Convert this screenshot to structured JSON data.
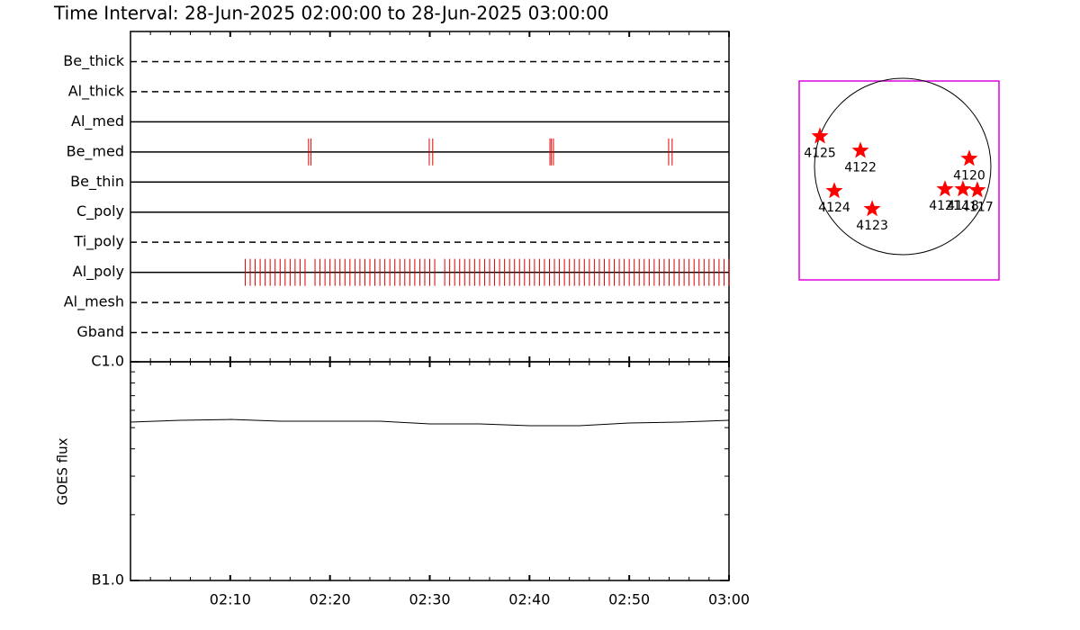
{
  "chart_data": [
    {
      "type": "timeline",
      "title": "Time Interval: 28-Jun-2025 02:00:00 to 28-Jun-2025 03:00:00",
      "categories": [
        "Be_thick",
        "Al_thick",
        "Al_med",
        "Be_med",
        "Be_thin",
        "C_poly",
        "Ti_poly",
        "Al_poly",
        "Al_mesh",
        "Gband"
      ],
      "dashed": [
        true,
        true,
        false,
        false,
        false,
        false,
        true,
        false,
        true,
        true
      ],
      "color": "#e00000",
      "events": [
        [],
        [],
        [],
        [
          17.85,
          18.1,
          29.95,
          30.3,
          42.05,
          42.2,
          42.4,
          53.95,
          54.3
        ],
        [],
        [],
        [],
        [
          11.5,
          12,
          12.5,
          13,
          13.5,
          14,
          14.5,
          15,
          15.5,
          16,
          16.5,
          17,
          17.5,
          18.5,
          19,
          19.5,
          20,
          20.5,
          21,
          21.5,
          22,
          22.5,
          23,
          23.5,
          24,
          24.5,
          25,
          25.5,
          26,
          26.5,
          27,
          27.5,
          28,
          28.5,
          29,
          29.5,
          30,
          30.5,
          31.5,
          32,
          32.5,
          33,
          33.5,
          34,
          34.5,
          35,
          35.5,
          36,
          36.5,
          37,
          37.5,
          38,
          38.5,
          39,
          39.5,
          40,
          40.5,
          41,
          41.5,
          42,
          42.5,
          43,
          43.5,
          44,
          44.5,
          45,
          45.5,
          46,
          46.5,
          47,
          47.5,
          48,
          48.5,
          49,
          49.5,
          50,
          50.5,
          51,
          51.5,
          52,
          52.5,
          53,
          53.5,
          54,
          54.5,
          55,
          55.5,
          56,
          56.5,
          57,
          57.5,
          58,
          58.5,
          59,
          59.5,
          60
        ],
        [],
        []
      ]
    },
    {
      "type": "line",
      "y_label": "GOES flux",
      "log_y": true,
      "x": [
        0,
        5,
        10,
        15,
        20,
        25,
        30,
        35,
        40,
        45,
        50,
        55,
        60
      ],
      "values": [
        5.3e-07,
        5.4e-07,
        5.45e-07,
        5.35e-07,
        5.35e-07,
        5.35e-07,
        5.2e-07,
        5.2e-07,
        5.1e-07,
        5.1e-07,
        5.25e-07,
        5.3e-07,
        5.4e-07
      ],
      "color": "#000000",
      "xlim": [
        0,
        60
      ],
      "xticks": [
        {
          "value": 10,
          "label": "02:10"
        },
        {
          "value": 20,
          "label": "02:20"
        },
        {
          "value": 30,
          "label": "02:30"
        },
        {
          "value": 40,
          "label": "02:40"
        },
        {
          "value": 50,
          "label": "02:50"
        },
        {
          "value": 60,
          "label": "03:00"
        }
      ],
      "minor_xticks": [
        2,
        4,
        6,
        8,
        12,
        14,
        16,
        18,
        22,
        24,
        26,
        28,
        32,
        34,
        36,
        38,
        42,
        44,
        46,
        48,
        52,
        54,
        56,
        58
      ],
      "ylim": [
        1e-07,
        1e-06
      ],
      "yticks": [
        {
          "value": 1e-07,
          "label": "B1.0"
        },
        {
          "value": 1e-06,
          "label": "C1.0"
        }
      ],
      "minor_yticks": [
        2e-07,
        3e-07,
        4e-07,
        5e-07,
        6e-07,
        7e-07,
        8e-07,
        9e-07
      ]
    },
    {
      "type": "scatter",
      "color": "#ff0000",
      "frame_color": "#dd00dd",
      "xlim": [
        -1075,
        1075
      ],
      "ylim": [
        -1070,
        1075
      ],
      "labels": [
        "4125",
        "4122",
        "4120",
        "4124",
        "4123",
        "4121",
        "4118",
        "4117"
      ],
      "x": [
        -852,
        -416,
        755,
        -697,
        -290,
        494,
        687,
        842
      ],
      "values": [
        479,
        324,
        237,
        -111,
        -305,
        -92,
        -92,
        -102
      ]
    }
  ]
}
